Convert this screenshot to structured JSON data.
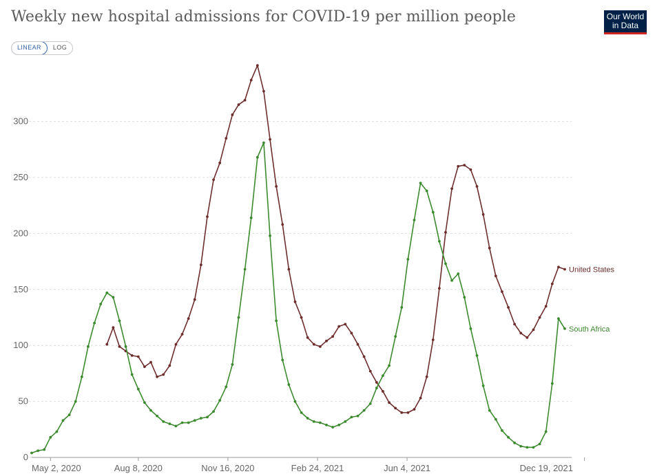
{
  "header": {
    "title": "Weekly new hospital admissions for COVID-19 per million people",
    "logo_line1": "Our World",
    "logo_line2": "in Data"
  },
  "scale_toggle": {
    "linear_label": "LINEAR",
    "log_label": "LOG",
    "selected": "LINEAR"
  },
  "colors": {
    "united_states": "#6d2d2d",
    "south_africa": "#3c8a2e",
    "grid": "#dddddd",
    "axis": "#999999",
    "logo_bg": "#002147",
    "logo_accent": "#ce261e"
  },
  "chart_data": {
    "type": "line",
    "title": "Weekly new hospital admissions for COVID-19 per million people",
    "x_unit": "week",
    "x_start": "2020-04-11",
    "x_tick_labels": [
      "May 2, 2020",
      "Aug 8, 2020",
      "Nov 16, 2020",
      "Feb 24, 2021",
      "Jun 4, 2021",
      "Dec 19, 2021"
    ],
    "y_ticks": [
      0,
      50,
      100,
      150,
      200,
      250,
      300
    ],
    "ylim": [
      0,
      350
    ],
    "grid": "horizontal",
    "series": [
      {
        "name": "United States",
        "start_index": 12,
        "values": [
          101,
          116,
          99,
          95,
          91,
          90,
          81,
          85,
          72,
          74,
          82,
          101,
          110,
          124,
          141,
          172,
          215,
          248,
          263,
          285,
          306,
          315,
          319,
          337,
          350,
          327,
          284,
          242,
          208,
          168,
          139,
          125,
          107,
          101,
          99,
          104,
          108,
          117,
          119,
          111,
          101,
          90,
          77,
          67,
          59,
          49,
          44,
          40,
          40,
          43,
          53,
          72,
          105,
          151,
          201,
          240,
          260,
          261,
          257,
          242,
          217,
          187,
          162,
          148,
          134,
          119,
          111,
          107,
          114,
          125,
          135,
          155,
          170,
          168
        ]
      },
      {
        "name": "South Africa",
        "start_index": 0,
        "values": [
          4,
          6,
          7,
          18,
          23,
          33,
          38,
          50,
          72,
          99,
          120,
          137,
          147,
          143,
          122,
          99,
          74,
          61,
          49,
          42,
          37,
          32,
          30,
          28,
          31,
          31,
          33,
          35,
          36,
          41,
          51,
          63,
          83,
          125,
          168,
          214,
          268,
          281,
          198,
          122,
          87,
          65,
          50,
          40,
          35,
          32,
          31,
          29,
          27,
          29,
          32,
          36,
          37,
          42,
          48,
          62,
          73,
          82,
          108,
          134,
          177,
          212,
          245,
          238,
          219,
          193,
          173,
          158,
          164,
          143,
          115,
          91,
          64,
          42,
          34,
          24,
          18,
          13,
          10,
          9,
          9,
          12,
          23,
          66,
          124,
          115
        ]
      }
    ]
  }
}
